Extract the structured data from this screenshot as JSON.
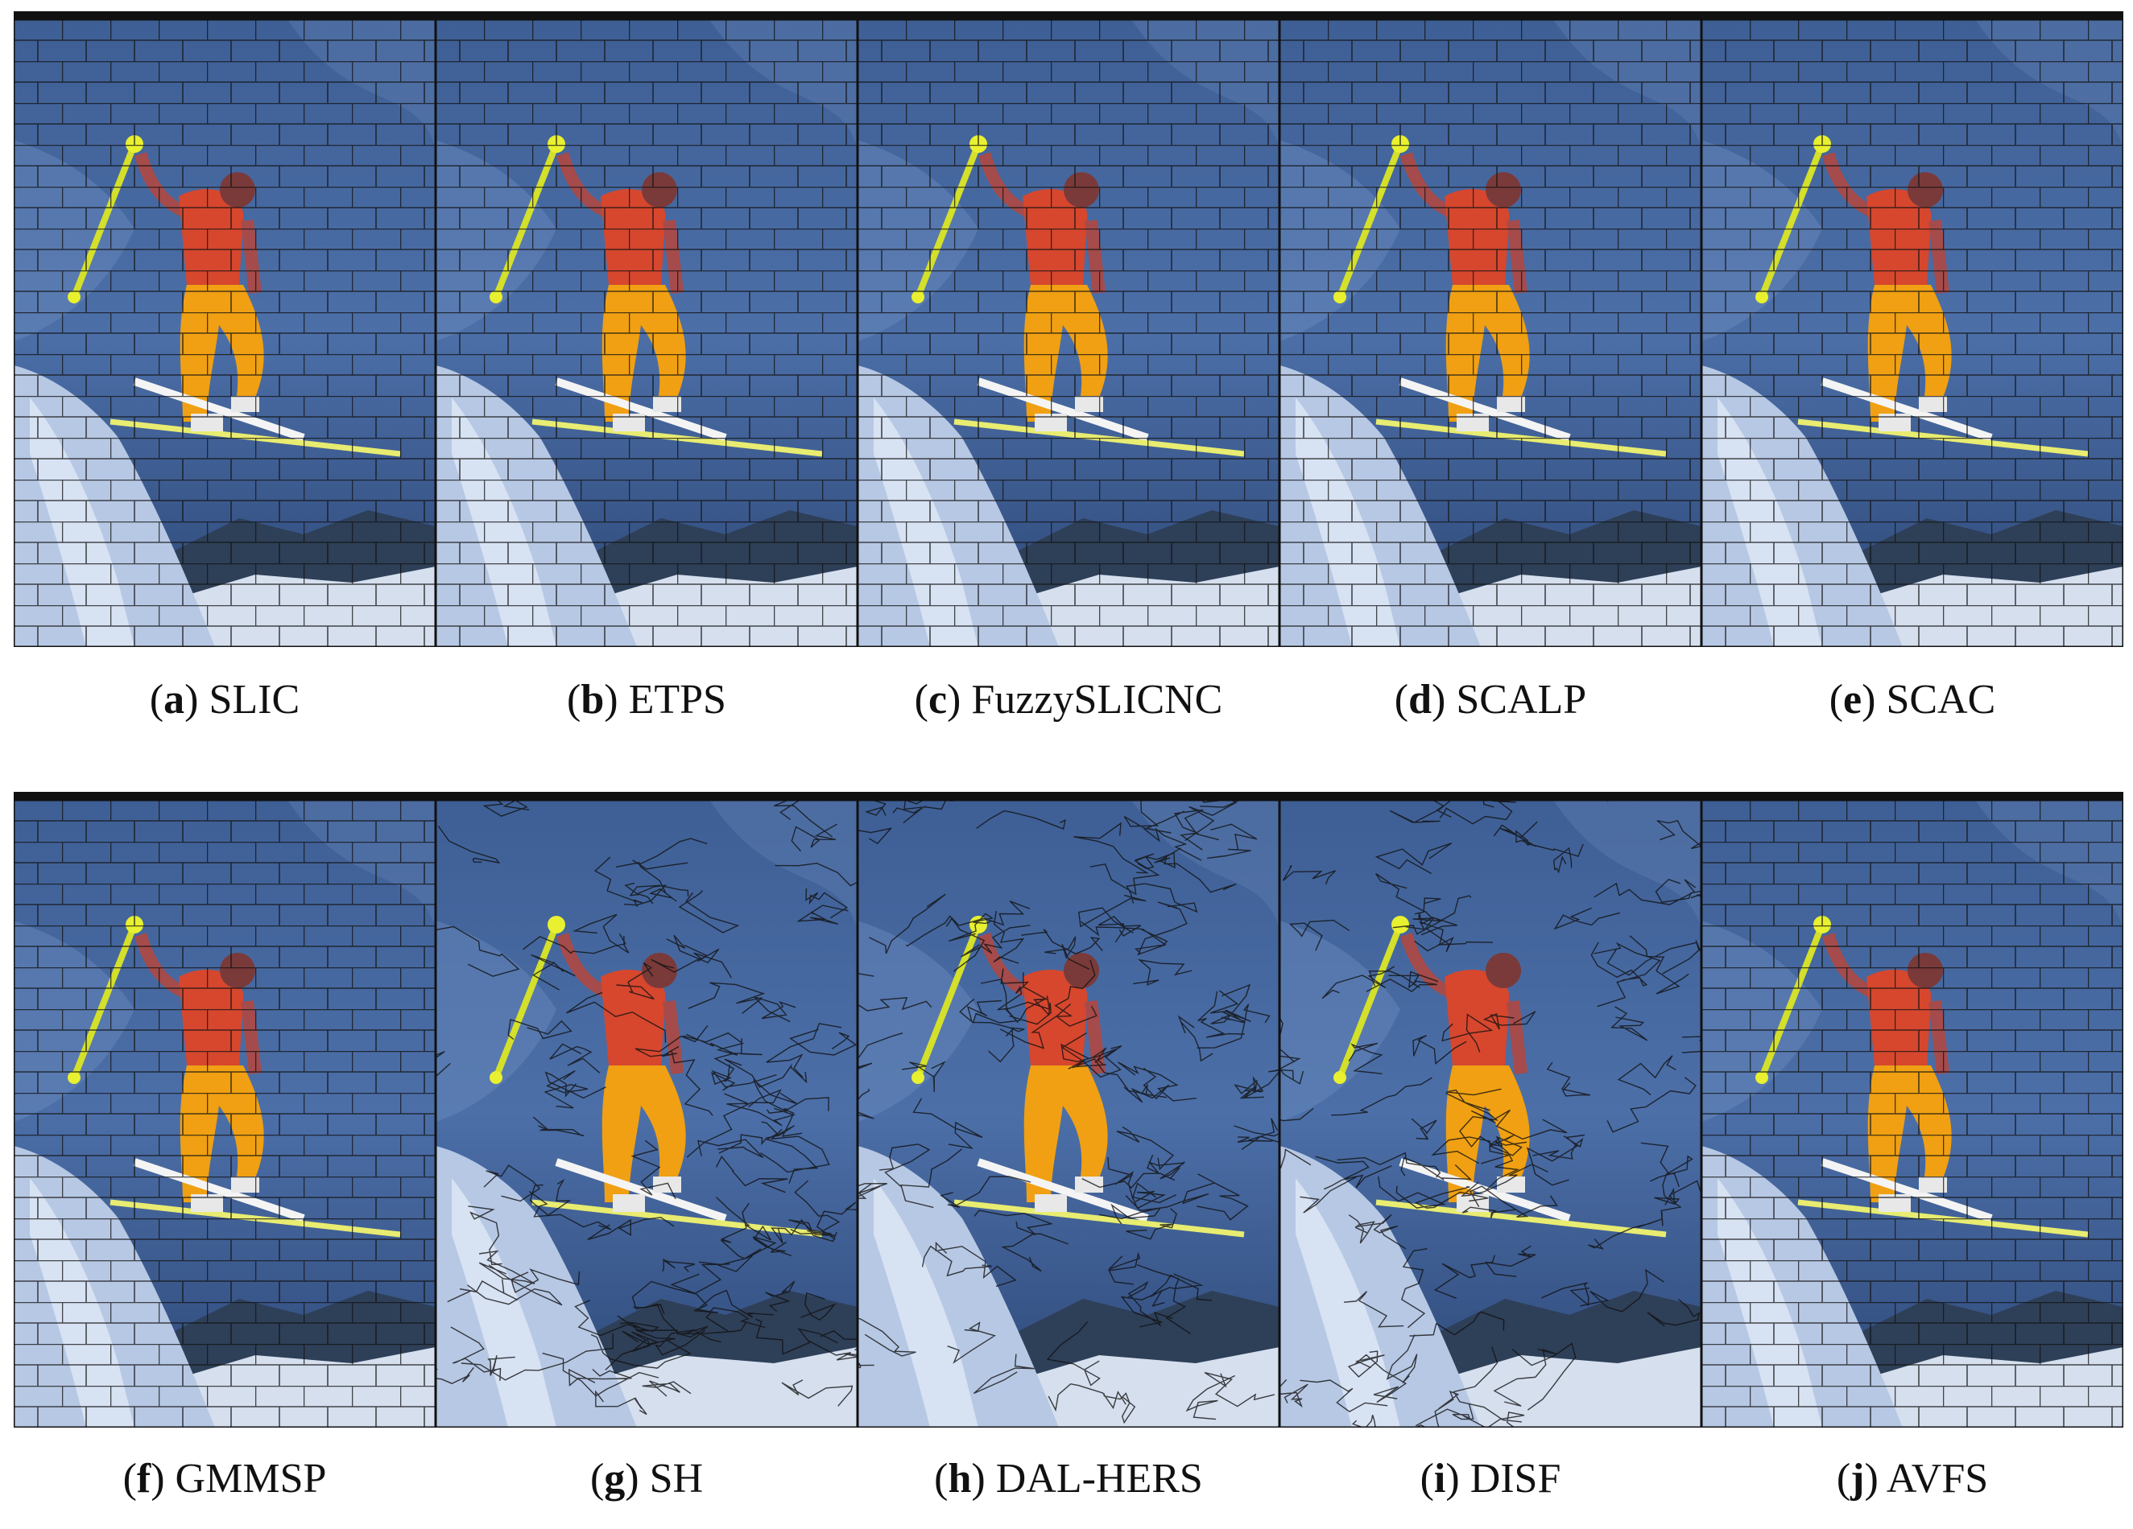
{
  "figure": {
    "panels": [
      {
        "caption": [
          "(",
          "a",
          ") SLIC"
        ]
      },
      {
        "caption": [
          "(",
          "b",
          ") ETPS"
        ]
      },
      {
        "caption": [
          "(",
          "c",
          ") FuzzySLICNC"
        ]
      },
      {
        "caption": [
          "(",
          "d",
          ") SCALP"
        ]
      },
      {
        "caption": [
          "(",
          "e",
          ") SCAC"
        ]
      },
      {
        "caption": [
          "(",
          "f",
          ") GMMSP"
        ]
      },
      {
        "caption": [
          "(",
          "g",
          ") SH"
        ]
      },
      {
        "caption": [
          "(",
          "h",
          ") DAL-HERS"
        ]
      },
      {
        "caption": [
          "(",
          "i",
          ") DISF"
        ]
      },
      {
        "caption": [
          "(",
          "j",
          ") AVFS"
        ]
      }
    ]
  }
}
